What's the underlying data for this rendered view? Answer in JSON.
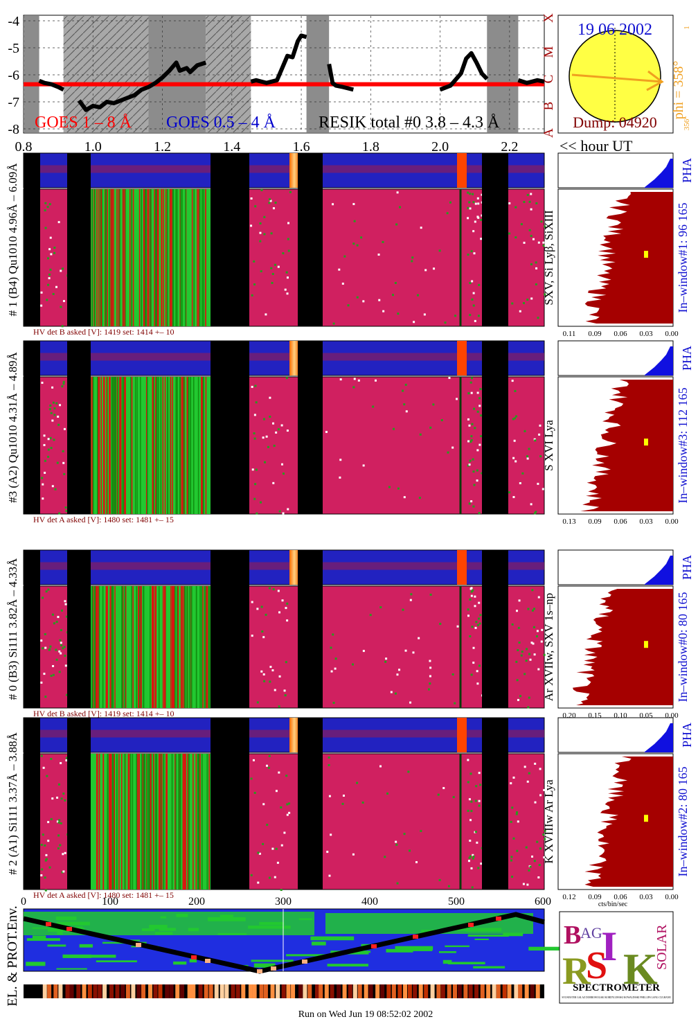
{
  "chart_data": {
    "type": "line",
    "goes": {
      "ylim": [
        -8,
        -4
      ],
      "y_ticks": [
        "-4",
        "-5",
        "-6",
        "-7",
        "-8"
      ],
      "x_ticks": [
        "0.8",
        "1.0",
        "1.2",
        "1.4",
        "1.6",
        "1.8",
        "2.0",
        "2.2"
      ],
      "x_unit_label": "<< hour UT",
      "class_labels": [
        "X",
        "M",
        "C",
        "B",
        "A"
      ],
      "legend": {
        "goes_long": "GOES 1 – 8 Å",
        "goes_short": "GOES 0.5 – 4 Å",
        "resik": "RESIK total #0  3.8 – 4.3 Å"
      },
      "colors": {
        "goes_long": "#ff0000",
        "goes_short": "#0000cc",
        "resik": "#000000"
      },
      "threshold_level": -6.35,
      "gaps": [
        [
          0.8,
          0.845
        ],
        [
          0.915,
          1.16
        ],
        [
          1.16,
          1.325
        ],
        [
          1.325,
          1.455
        ],
        [
          1.615,
          1.68
        ],
        [
          2.135,
          2.225
        ]
      ],
      "hatched_gaps": [
        [
          0.915,
          1.16
        ],
        [
          1.325,
          1.455
        ]
      ],
      "series": [
        {
          "name": "RESIK total #0  3.8 – 4.3 Å",
          "x": [
            0.845,
            0.86,
            0.88,
            0.9,
            0.915,
            0.96,
            0.98,
            1.0,
            1.02,
            1.04,
            1.06,
            1.08,
            1.1,
            1.12,
            1.14,
            1.16,
            1.18,
            1.2,
            1.22,
            1.24,
            1.25,
            1.27,
            1.28,
            1.3,
            1.325,
            1.455,
            1.47,
            1.5,
            1.53,
            1.545,
            1.56,
            1.575,
            1.59,
            1.6,
            1.615,
            1.68,
            1.69,
            1.7,
            1.72,
            1.75,
            1.8,
            1.85,
            1.9,
            1.95,
            2.0,
            2.03,
            2.06,
            2.075,
            2.09,
            2.105,
            2.12,
            2.135,
            2.225,
            2.25,
            2.28,
            2.3
          ],
          "y": [
            -6.22,
            -6.3,
            -6.35,
            -6.45,
            -6.55,
            -6.95,
            -7.3,
            -7.15,
            -7.2,
            -7.0,
            -7.05,
            -6.95,
            -6.85,
            -6.75,
            -6.55,
            -6.45,
            -6.3,
            -6.1,
            -5.85,
            -5.55,
            -5.85,
            -5.75,
            -5.9,
            -5.65,
            -5.55,
            -6.25,
            -6.2,
            -6.3,
            -6.2,
            -5.75,
            -5.3,
            -5.35,
            -4.75,
            -4.55,
            -4.6,
            -5.6,
            -6.3,
            -6.4,
            -6.45,
            -6.55,
            -6.6,
            -6.7,
            -6.6,
            -6.65,
            -6.55,
            -6.4,
            -5.95,
            -5.4,
            -5.2,
            -5.55,
            -5.95,
            -6.15,
            -6.2,
            -6.3,
            -6.2,
            -6.25
          ]
        },
        {
          "name": "GOES 1 – 8 Å",
          "x": [
            0.8,
            2.3
          ],
          "y": [
            -6.35,
            -6.35
          ]
        }
      ]
    },
    "disk": {
      "date": "19 06 2002",
      "dump": "Dump: 04920",
      "phi": "phi = 358°",
      "side_top": "1",
      "side_bottom": "356"
    },
    "detectors": [
      {
        "label": "# 1 (B4) Qu1010 4.96Å – 6.09Å",
        "line_ids": "SXV, Si Lyβ, SiXIII",
        "window": "In–window#1:  96 165",
        "pha": "PHA",
        "hv": "HV det B asked [V]:  1419 set:  1414   +–   10",
        "x_ticks": [
          "0.11",
          "0.09",
          "0.06",
          "0.03",
          "0.00"
        ]
      },
      {
        "label": "#3 (A2) Qu1010  4.31Å – 4.89Å",
        "line_ids": "S XVI Lya",
        "window": "In–window#3:  112 165",
        "pha": "PHA",
        "hv": "HV det A asked [V]:  1480 set:  1481   +–   15",
        "x_ticks": [
          "0.13",
          "0.09",
          "0.06",
          "0.03",
          "0.00"
        ]
      },
      {
        "label": "# 0 (B3) Si111  3.82Å – 4.33Å",
        "line_ids": "Ar XVIIw,  SXV 1s–np",
        "window": "In–window#0:  80 165",
        "pha": "PHA",
        "hv": "HV det B asked [V]:  1419 set:  1414   +–   10",
        "x_ticks": [
          "0.20",
          "0.15",
          "0.10",
          "0.05",
          "0.00"
        ]
      },
      {
        "label": "# 2 (A1) Si111  3.37Å – 3.88Å",
        "line_ids": "K XVIIIw  Ar Lya",
        "window": "In–window#2:  80 165",
        "pha": "PHA",
        "hv": "HV det A asked [V]:  1480 set:  1481   +–   15",
        "x_ticks": [
          "0.12",
          "0.09",
          "0.06",
          "0.03",
          "0.00"
        ]
      }
    ],
    "spectrum_x_unit": "cts/bin/sec",
    "env": {
      "label": "EL. & PROT.Env.",
      "x_ticks": [
        "0",
        "100",
        "200",
        "300",
        "400",
        "500",
        "600"
      ]
    }
  },
  "logo": {
    "letters": "BRAGG RESIK SOLAR",
    "name": "SPECTROMETER",
    "credits": "SYLWESTER GALAZ DOBROWOLSKI KORDYLEWSKI KOWALINSKI PHILLIPS LANG CULHANE"
  },
  "footer": {
    "run": "Run on Wed Jun 19 08:52:02 2002"
  }
}
